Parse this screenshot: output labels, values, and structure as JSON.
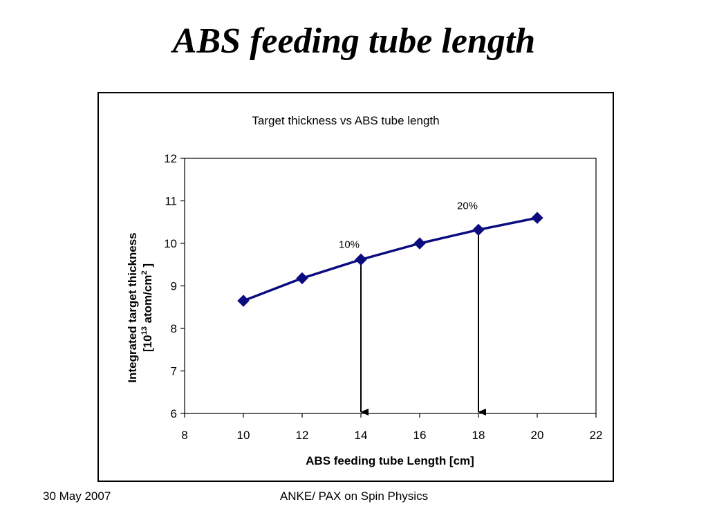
{
  "slide": {
    "title": "ABS feeding tube length"
  },
  "footer": {
    "date": "30 May 2007",
    "center": "ANKE/ PAX on Spin Physics"
  },
  "colors": {
    "series": "#0b0b80",
    "axis": "#000000",
    "background": "#ffffff"
  },
  "chart_data": {
    "type": "line",
    "title": "Target thickness vs ABS tube length",
    "xlabel": "ABS feeding tube Length [cm]",
    "ylabel_line1": "Integrated target thickness",
    "ylabel_line2_prefix": "[10",
    "ylabel_line2_sup": "13",
    "ylabel_line2_mid": " atom/cm",
    "ylabel_line2_sup2": "2",
    "ylabel_line2_suffix": " ]",
    "xlim": [
      8,
      22
    ],
    "ylim": [
      6,
      12
    ],
    "xticks": [
      "8",
      "10",
      "12",
      "14",
      "16",
      "18",
      "20",
      "22"
    ],
    "yticks": [
      "6",
      "7",
      "8",
      "9",
      "10",
      "11",
      "12"
    ],
    "grid": false,
    "legend": "none",
    "marker": "diamond",
    "series": [
      {
        "x": [
          10,
          12,
          14,
          16,
          18,
          20
        ],
        "y": [
          8.65,
          9.18,
          9.62,
          10.0,
          10.32,
          10.6
        ]
      }
    ],
    "annotations": [
      {
        "text": "10%",
        "x": 14,
        "y": 9.62,
        "arrow_to_y": 6
      },
      {
        "text": "20%",
        "x": 18,
        "y": 10.32,
        "arrow_to_y": 6
      }
    ]
  }
}
